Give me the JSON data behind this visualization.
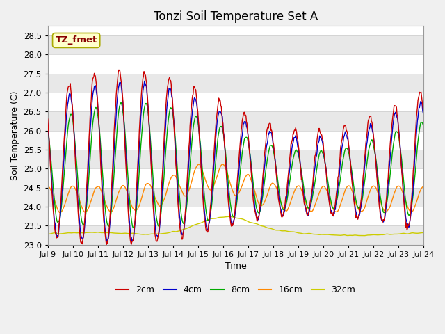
{
  "title": "Tonzi Soil Temperature Set A",
  "xlabel": "Time",
  "ylabel": "Soil Temperature (C)",
  "ylim": [
    23.0,
    28.75
  ],
  "yticks": [
    23.0,
    23.5,
    24.0,
    24.5,
    25.0,
    25.5,
    26.0,
    26.5,
    27.0,
    27.5,
    28.0,
    28.5
  ],
  "xtick_labels": [
    "Jul 9",
    "Jul 10",
    "Jul 11",
    "Jul 12",
    "Jul 13",
    "Jul 14",
    "Jul 15",
    "Jul 16",
    "Jul 17",
    "Jul 18",
    "Jul 19",
    "Jul 20",
    "Jul 21",
    "Jul 22",
    "Jul 23",
    "Jul 24"
  ],
  "label_box_text": "TZ_fmet",
  "line_colors": [
    "#cc0000",
    "#0000cc",
    "#00aa00",
    "#ff8800",
    "#cccc00"
  ],
  "line_labels": [
    "2cm",
    "4cm",
    "8cm",
    "16cm",
    "32cm"
  ],
  "line_width": 1.0,
  "plot_bg": "#ffffff",
  "band_color": "#e8e8e8",
  "fig_bg": "#f0f0f0",
  "title_fontsize": 12,
  "label_fontsize": 9,
  "tick_fontsize": 8.5
}
